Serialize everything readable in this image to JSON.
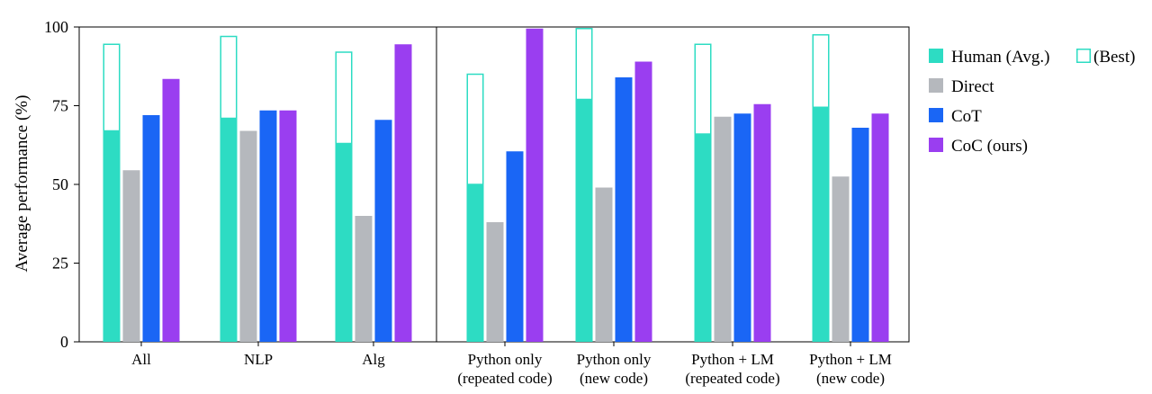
{
  "chart_data": {
    "type": "bar",
    "ylabel": "Average performance (%)",
    "ylim": [
      0,
      100
    ],
    "yticks": [
      0,
      25,
      50,
      75,
      100
    ],
    "grid": false,
    "legend_position": "right",
    "categories": [
      [
        "All"
      ],
      [
        "NLP"
      ],
      [
        "Alg"
      ],
      [
        "Python only",
        "(repeated code)"
      ],
      [
        "Python only",
        "(new code)"
      ],
      [
        "Python + LM",
        "(repeated code)"
      ],
      [
        "Python + LM",
        "(new code)"
      ]
    ],
    "best": {
      "name": "(Best)",
      "color": "#2ddcc3",
      "values": [
        94.5,
        97,
        92,
        85,
        99.5,
        94.5,
        97.5
      ]
    },
    "series": [
      {
        "name": "Human (Avg.)",
        "color": "#2ddcc3",
        "values": [
          67,
          71,
          63,
          50,
          77,
          66,
          74.5
        ]
      },
      {
        "name": "Direct",
        "color": "#b5b8bd",
        "values": [
          54.5,
          67,
          40,
          38,
          49,
          71.5,
          52.5
        ]
      },
      {
        "name": "CoT",
        "color": "#1a66f5",
        "values": [
          72,
          73.5,
          70.5,
          60.5,
          84,
          72.5,
          68
        ]
      },
      {
        "name": "CoC (ours)",
        "color": "#9a3ef0",
        "values": [
          83.5,
          73.5,
          94.5,
          99.5,
          89,
          75.5,
          72.5
        ]
      }
    ]
  }
}
